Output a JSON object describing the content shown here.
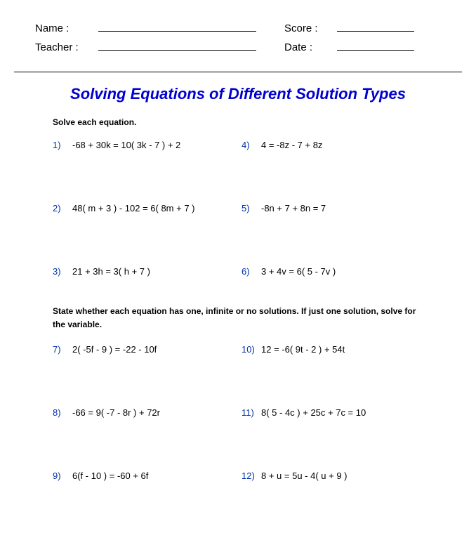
{
  "header": {
    "name_label": "Name :",
    "teacher_label": "Teacher :",
    "score_label": "Score :",
    "date_label": "Date :"
  },
  "title": "Solving Equations of Different Solution Types",
  "section1": {
    "instruction": "Solve each equation.",
    "left": [
      {
        "num": "1)",
        "eq": "-68 + 30k = 10( 3k - 7 ) + 2"
      },
      {
        "num": "2)",
        "eq": "48( m + 3 ) - 102 = 6( 8m + 7 )"
      },
      {
        "num": "3)",
        "eq": "21 + 3h = 3( h + 7 )"
      }
    ],
    "right": [
      {
        "num": "4)",
        "eq": "4 = -8z - 7 + 8z"
      },
      {
        "num": "5)",
        "eq": "-8n + 7 + 8n = 7"
      },
      {
        "num": "6)",
        "eq": "3 + 4v = 6( 5 - 7v )"
      }
    ]
  },
  "section2": {
    "instruction": "State whether each equation has one, infinite or no solutions. If just one solution, solve for the variable.",
    "left": [
      {
        "num": "7)",
        "eq": "2( -5f - 9 ) = -22 - 10f"
      },
      {
        "num": "8)",
        "eq": "-66 = 9( -7 - 8r ) + 72r"
      },
      {
        "num": "9)",
        "eq": "6(f - 10 ) = -60 + 6f"
      }
    ],
    "right": [
      {
        "num": "10)",
        "eq": "12 = -6( 9t - 2 ) + 54t"
      },
      {
        "num": "11)",
        "eq": "8( 5 - 4c ) + 25c + 7c = 10"
      },
      {
        "num": "12)",
        "eq": "8 + u = 5u - 4( u + 9 )"
      }
    ]
  },
  "styling": {
    "title_color": "#0000d0",
    "num_color": "#0033aa",
    "text_color": "#000000",
    "background": "#ffffff",
    "title_fontsize": 22,
    "body_fontsize": 13,
    "instruction_fontsize": 12
  }
}
